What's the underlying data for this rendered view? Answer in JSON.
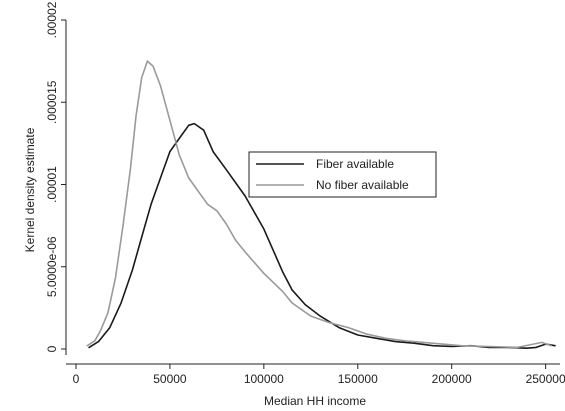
{
  "chart_data": {
    "type": "line",
    "title": "",
    "xlabel": "Median HH income",
    "ylabel": "Kernel density estimate",
    "xlim": [
      0,
      255000
    ],
    "ylim": [
      0,
      2e-05
    ],
    "xticks": [
      {
        "value": 0,
        "label": "0"
      },
      {
        "value": 50000,
        "label": "50000"
      },
      {
        "value": 100000,
        "label": "100000"
      },
      {
        "value": 150000,
        "label": "150000"
      },
      {
        "value": 200000,
        "label": "200000"
      },
      {
        "value": 250000,
        "label": "250000"
      }
    ],
    "yticks": [
      {
        "value": 0,
        "label": "0"
      },
      {
        "value": 5e-06,
        "label": "5.0000e-06"
      },
      {
        "value": 1e-05,
        "label": ".00001"
      },
      {
        "value": 1.5e-05,
        "label": ".000015"
      },
      {
        "value": 2e-05,
        "label": ".00002"
      }
    ],
    "grid": false,
    "legend_position": "center-right",
    "series": [
      {
        "name": "Fiber available",
        "color": "#1a1a1a",
        "points": [
          [
            7000,
            1e-07
          ],
          [
            12000,
            4.5e-07
          ],
          [
            18000,
            1.3e-06
          ],
          [
            24000,
            2.8e-06
          ],
          [
            30000,
            4.8e-06
          ],
          [
            35000,
            6.8e-06
          ],
          [
            40000,
            8.8e-06
          ],
          [
            45000,
            1.04e-05
          ],
          [
            50000,
            1.2e-05
          ],
          [
            55000,
            1.28e-05
          ],
          [
            60000,
            1.36e-05
          ],
          [
            63000,
            1.37e-05
          ],
          [
            68000,
            1.33e-05
          ],
          [
            73000,
            1.2e-05
          ],
          [
            80000,
            1.09e-05
          ],
          [
            90000,
            9.3e-06
          ],
          [
            100000,
            7.3e-06
          ],
          [
            110000,
            4.7e-06
          ],
          [
            115000,
            3.6e-06
          ],
          [
            122000,
            2.7e-06
          ],
          [
            130000,
            2e-06
          ],
          [
            140000,
            1.3e-06
          ],
          [
            150000,
            8.5e-07
          ],
          [
            160000,
            6.5e-07
          ],
          [
            170000,
            4.5e-07
          ],
          [
            180000,
            3.5e-07
          ],
          [
            190000,
            2e-07
          ],
          [
            200000,
            1.5e-07
          ],
          [
            210000,
            2e-07
          ],
          [
            220000,
            1e-07
          ],
          [
            230000,
            1e-07
          ],
          [
            240000,
            5e-08
          ],
          [
            245000,
            1e-07
          ],
          [
            250000,
            3e-07
          ],
          [
            255000,
            2e-07
          ]
        ]
      },
      {
        "name": "No fiber available",
        "color": "#9a9a9a",
        "points": [
          [
            6000,
            2e-07
          ],
          [
            10000,
            5e-07
          ],
          [
            13000,
            1.1e-06
          ],
          [
            17000,
            2.2e-06
          ],
          [
            21000,
            4.3e-06
          ],
          [
            25000,
            7.5e-06
          ],
          [
            29000,
            1.1e-05
          ],
          [
            32000,
            1.42e-05
          ],
          [
            35000,
            1.65e-05
          ],
          [
            38000,
            1.75e-05
          ],
          [
            41000,
            1.72e-05
          ],
          [
            45000,
            1.6e-05
          ],
          [
            50000,
            1.39e-05
          ],
          [
            55000,
            1.18e-05
          ],
          [
            60000,
            1.04e-05
          ],
          [
            65000,
            9.6e-06
          ],
          [
            70000,
            8.8e-06
          ],
          [
            75000,
            8.4e-06
          ],
          [
            80000,
            7.6e-06
          ],
          [
            85000,
            6.6e-06
          ],
          [
            90000,
            5.9e-06
          ],
          [
            100000,
            4.6e-06
          ],
          [
            110000,
            3.5e-06
          ],
          [
            115000,
            2.8e-06
          ],
          [
            125000,
            2e-06
          ],
          [
            135000,
            1.6e-06
          ],
          [
            145000,
            1.3e-06
          ],
          [
            155000,
            9e-07
          ],
          [
            165000,
            6.5e-07
          ],
          [
            175000,
            5e-07
          ],
          [
            185000,
            4e-07
          ],
          [
            195000,
            3e-07
          ],
          [
            205000,
            2e-07
          ],
          [
            220000,
            1.5e-07
          ],
          [
            235000,
            1e-07
          ],
          [
            248000,
            4e-07
          ],
          [
            253000,
            2e-07
          ]
        ]
      }
    ]
  }
}
